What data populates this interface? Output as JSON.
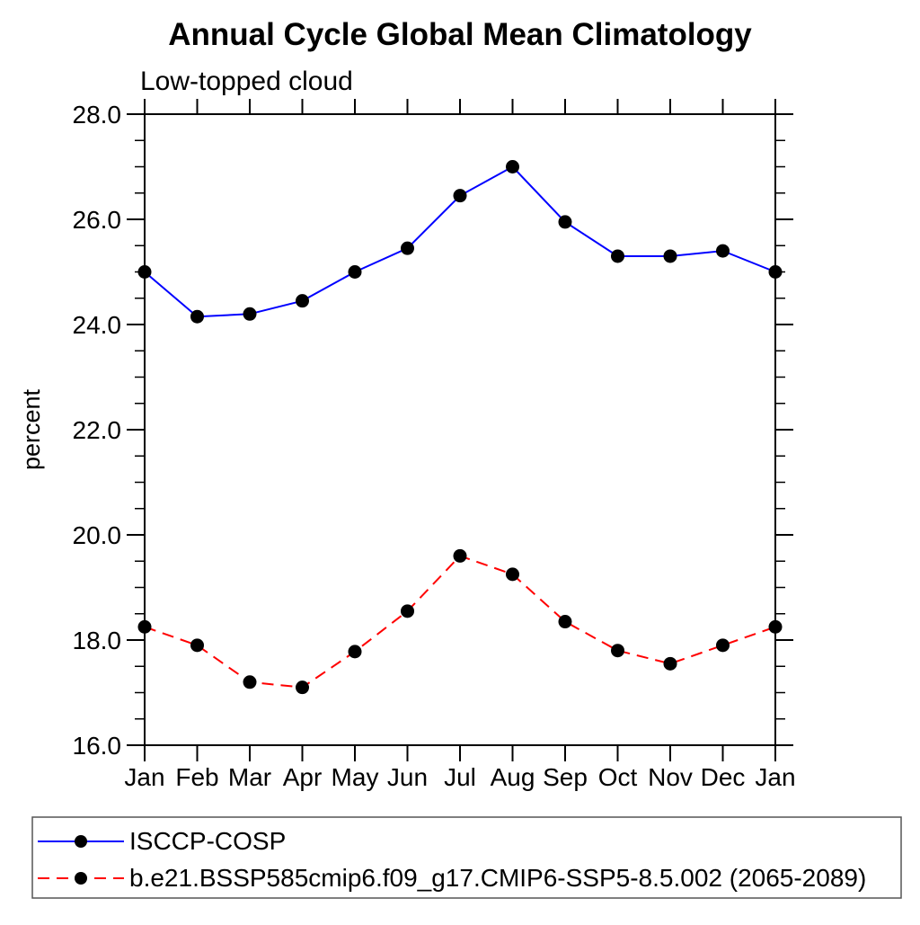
{
  "chart_data": {
    "type": "line",
    "title": "Annual Cycle Global Mean Climatology",
    "subtitle": "Low-topped cloud",
    "ylabel": "percent",
    "x_categories": [
      "Jan",
      "Feb",
      "Mar",
      "Apr",
      "May",
      "Jun",
      "Jul",
      "Aug",
      "Sep",
      "Oct",
      "Nov",
      "Dec",
      "Jan"
    ],
    "ylim": [
      16.0,
      28.0
    ],
    "ytick_major_step": 2.0,
    "ytick_minor_step": 0.5,
    "ytick_labels": [
      "16.0",
      "18.0",
      "20.0",
      "22.0",
      "24.0",
      "26.0",
      "28.0"
    ],
    "grid": false,
    "legend_position": "bottom",
    "axis_color": "#000000",
    "series": [
      {
        "name": "ISCCP-COSP",
        "color": "#0000ff",
        "line_style": "solid",
        "marker": "filled-circle",
        "marker_color": "#000000",
        "values": [
          25.0,
          24.15,
          24.2,
          24.45,
          25.0,
          25.45,
          26.45,
          27.0,
          25.95,
          25.3,
          25.3,
          25.4,
          25.0
        ]
      },
      {
        "name": "b.e21.BSSP585cmip6.f09_g17.CMIP6-SSP5-8.5.002 (2065-2089)",
        "color": "#ff0000",
        "line_style": "dashed",
        "marker": "filled-circle",
        "marker_color": "#000000",
        "values": [
          18.25,
          17.9,
          17.2,
          17.1,
          17.78,
          18.55,
          19.6,
          19.25,
          18.35,
          17.8,
          17.55,
          17.9,
          18.25
        ]
      }
    ]
  }
}
